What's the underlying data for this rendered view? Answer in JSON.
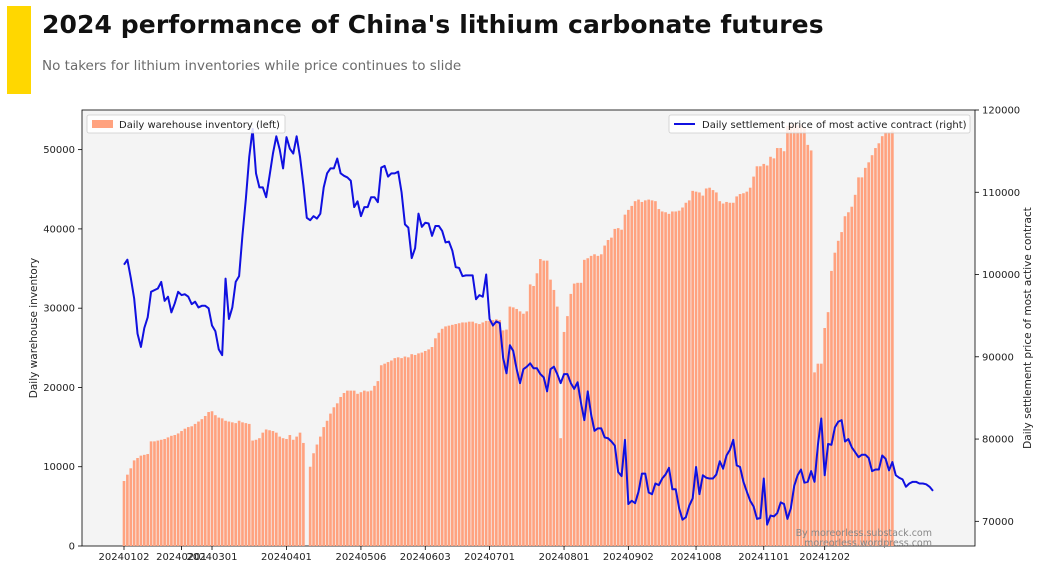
{
  "header": {
    "title": "2024 performance of China's lithium carbonate futures",
    "subtitle": "No takers for lithium inventories while price continues to slide",
    "accent_color": "#FFD700"
  },
  "colors": {
    "plot_background": "#F4F4F4",
    "bar": "#FFA27F",
    "line": "#1010E0",
    "credit": "#888888"
  },
  "credit": [
    "By moreorless.substack.com",
    "moreorless.wordpress.com"
  ],
  "chart_data": {
    "type": "bar+line",
    "title": "2024 performance of China's lithium carbonate futures",
    "subtitle": "No takers for lithium inventories while price continues to slide",
    "x_tick_labels": [
      "20240102",
      "20240201",
      "20240301",
      "20240401",
      "20240506",
      "20240603",
      "20240701",
      "20240801",
      "20240902",
      "20241008",
      "20241101",
      "20241202"
    ],
    "x_tick_index": [
      0,
      17,
      26,
      48,
      70,
      89,
      108,
      130,
      149,
      169,
      189,
      207
    ],
    "x_count": 240,
    "left_axis": {
      "label": "Daily warehouse inventory",
      "range": [
        0,
        55000
      ],
      "ticks": [
        0,
        10000,
        20000,
        30000,
        40000,
        50000
      ]
    },
    "right_axis": {
      "label": "Daily settlement price of most active contract",
      "range": [
        67000,
        120000
      ],
      "ticks": [
        70000,
        80000,
        90000,
        100000,
        110000,
        120000
      ]
    },
    "grid": false,
    "legend": [
      {
        "name": "Daily warehouse inventory (left)",
        "type": "bar",
        "placement": "top-left"
      },
      {
        "name": "Daily settlement price of most active contract (right)",
        "type": "line",
        "placement": "top-right"
      }
    ],
    "series": [
      {
        "name": "Daily warehouse inventory (left)",
        "type": "bar",
        "axis": "left",
        "values": [
          8200,
          9000,
          9800,
          10800,
          11100,
          11400,
          11500,
          11600,
          13200,
          13200,
          13300,
          13400,
          13500,
          13700,
          13900,
          14000,
          14200,
          14500,
          14800,
          15000,
          15100,
          15400,
          15700,
          16000,
          16400,
          16900,
          17000,
          16500,
          16200,
          16100,
          15800,
          15700,
          15600,
          15500,
          15800,
          15600,
          15500,
          15400,
          13300,
          13400,
          13600,
          14300,
          14700,
          14600,
          14500,
          14300,
          13800,
          13600,
          13500,
          14000,
          13400,
          13800,
          14300,
          13000,
          null,
          10000,
          11700,
          12800,
          13800,
          15000,
          15800,
          16700,
          17500,
          18000,
          18800,
          19300,
          19600,
          19600,
          19600,
          19200,
          19400,
          19600,
          19500,
          19600,
          20200,
          20800,
          22800,
          23000,
          23200,
          23400,
          23700,
          23800,
          23700,
          23900,
          23800,
          24200,
          24100,
          24300,
          24400,
          24600,
          24800,
          25100,
          26200,
          26900,
          27400,
          27700,
          27800,
          27900,
          28000,
          28100,
          28200,
          28200,
          28300,
          28300,
          28100,
          28000,
          28200,
          28400,
          28400,
          28500,
          28600,
          28500,
          27200,
          27300,
          30200,
          30100,
          29900,
          29600,
          29300,
          29600,
          33000,
          32800,
          34400,
          36200,
          36000,
          36000,
          33600,
          32300,
          30200,
          13600,
          27000,
          29000,
          31800,
          33100,
          33200,
          33200,
          36100,
          36300,
          36600,
          36800,
          36600,
          36800,
          37900,
          38600,
          38900,
          40000,
          40100,
          39900,
          41800,
          42400,
          42900,
          43500,
          43700,
          43400,
          43600,
          43700,
          43600,
          43500,
          42500,
          42200,
          42100,
          41900,
          42200,
          42200,
          42300,
          42700,
          43300,
          43600,
          44800,
          44700,
          44600,
          44200,
          45100,
          45200,
          44900,
          44600,
          43500,
          43200,
          43400,
          43300,
          43300,
          44100,
          44400,
          44500,
          44700,
          45200,
          46600,
          47900,
          47900,
          48200,
          48000,
          49100,
          48900,
          50200,
          50200,
          49800,
          53000,
          53200,
          53300,
          53100,
          53200,
          52800,
          50600,
          49900,
          21900,
          23000,
          23000,
          27500,
          29500,
          34700,
          37000,
          38500,
          39600,
          41600,
          42100,
          42800,
          44300,
          46500,
          46500,
          47700,
          48400,
          49300,
          50200,
          50800,
          51700,
          52200,
          52200,
          52400
        ]
      },
      {
        "name": "Daily settlement price of most active contract (right)",
        "type": "line",
        "axis": "right",
        "values": [
          101200,
          101800,
          99600,
          97100,
          92800,
          91200,
          93500,
          94800,
          97900,
          98100,
          98300,
          99100,
          96800,
          97300,
          95400,
          96500,
          97900,
          97500,
          97600,
          97300,
          96400,
          96700,
          96000,
          96200,
          96200,
          95900,
          93800,
          93100,
          90900,
          90200,
          99500,
          94600,
          96000,
          99100,
          99800,
          104800,
          109200,
          114300,
          117700,
          112300,
          110600,
          110600,
          109400,
          112000,
          114700,
          116800,
          115200,
          112900,
          116700,
          115300,
          114700,
          116800,
          114300,
          110900,
          106900,
          106600,
          107100,
          106800,
          107400,
          110600,
          112300,
          112900,
          112900,
          114100,
          112300,
          112000,
          111800,
          111400,
          108200,
          108900,
          107100,
          108200,
          108200,
          109400,
          109400,
          108800,
          113000,
          113200,
          111900,
          112300,
          112300,
          112500,
          110000,
          106100,
          105700,
          102000,
          103200,
          107400,
          105800,
          106300,
          106200,
          104700,
          105900,
          105900,
          105300,
          103900,
          104000,
          102900,
          100900,
          100800,
          99800,
          99900,
          99900,
          99900,
          97000,
          97500,
          97300,
          100000,
          94600,
          93800,
          94300,
          94100,
          89900,
          88000,
          91400,
          90700,
          88500,
          86800,
          88500,
          88800,
          89200,
          88600,
          88600,
          87900,
          87500,
          85800,
          88500,
          88800,
          87900,
          86800,
          87900,
          87900,
          86800,
          86100,
          86900,
          84400,
          82300,
          85800,
          83000,
          81000,
          81300,
          81300,
          80200,
          80100,
          79700,
          79200,
          76000,
          75500,
          79900,
          72100,
          72500,
          72200,
          73600,
          75800,
          75800,
          73500,
          73300,
          74600,
          74400,
          75200,
          75700,
          76500,
          73900,
          73900,
          71600,
          70200,
          70500,
          71900,
          72800,
          76600,
          73300,
          75600,
          75300,
          75200,
          75200,
          75700,
          77300,
          76400,
          78000,
          78700,
          79900,
          76800,
          76600,
          74800,
          73600,
          72500,
          71800,
          70300,
          70400,
          75200,
          69600,
          70700,
          70600,
          71000,
          72300,
          72100,
          70300,
          71600,
          74300,
          75600,
          76300,
          74700,
          74800,
          76100,
          74800,
          79300,
          82500,
          75600,
          79400,
          79300,
          81400,
          82100,
          82300,
          79700,
          80000,
          79000,
          78400,
          77800,
          78100,
          78100,
          77700,
          76100,
          76300,
          76300,
          78000,
          77600,
          76200,
          77200,
          75600,
          75300,
          75100,
          74200,
          74600,
          74800,
          74800,
          74600,
          74600,
          74500,
          74200,
          73700
        ]
      }
    ]
  }
}
